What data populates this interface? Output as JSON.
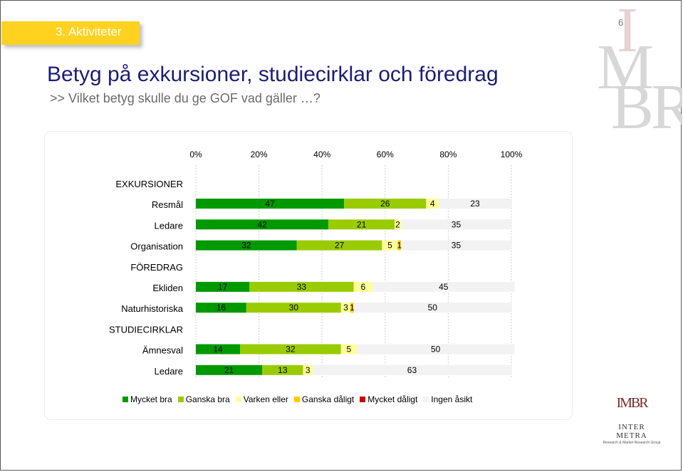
{
  "header": {
    "section_label": "3. Aktiviteter",
    "page_number": "6"
  },
  "watermark": {
    "letters": [
      "I",
      "M",
      "BR"
    ]
  },
  "title": "Betyg på exkursioner, studiecirklar och föredrag",
  "subtitle": ">> Vilket betyg skulle du ge GOF vad gäller …?",
  "logo": {
    "mark": "IMBR",
    "name": "INTER METRA",
    "tagline": "Research & Market Research Group"
  },
  "colors": {
    "mycket_bra": "#009900",
    "ganska_bra": "#99cc00",
    "varken_eller": "#ffff99",
    "ganska_daligt": "#ffcc00",
    "mycket_daligt": "#cc0000",
    "ingen_asikt": "#f2f2f2"
  },
  "chart_data": {
    "type": "bar",
    "orientation": "horizontal",
    "stacked": true,
    "percent_axis": true,
    "xlim": [
      0,
      100
    ],
    "x_ticks": [
      "0%",
      "20%",
      "40%",
      "60%",
      "80%",
      "100%"
    ],
    "grid": true,
    "legend_position": "bottom",
    "series": [
      {
        "name": "Mycket bra",
        "color": "#009900"
      },
      {
        "name": "Ganska bra",
        "color": "#99cc00"
      },
      {
        "name": "Varken eller",
        "color": "#ffff99"
      },
      {
        "name": "Ganska dåligt",
        "color": "#ffcc00"
      },
      {
        "name": "Mycket dåligt",
        "color": "#cc0000"
      },
      {
        "name": "Ingen åsikt",
        "color": "#f2f2f2"
      }
    ],
    "groups": [
      {
        "label": "EXKURSIONER",
        "rows": [
          {
            "label": "Resmål",
            "values": [
              47,
              26,
              4,
              0,
              0,
              23
            ],
            "value_labels": [
              "47",
              "26",
              "4",
              "",
              "",
              "23"
            ]
          },
          {
            "label": "Ledare",
            "values": [
              42,
              21,
              2,
              0,
              0,
              35
            ],
            "value_labels": [
              "42",
              "21",
              "2",
              "",
              "",
              "35"
            ]
          },
          {
            "label": "Organisation",
            "values": [
              32,
              27,
              5,
              1,
              0,
              35
            ],
            "value_labels": [
              "32",
              "27",
              "5",
              "1",
              "",
              "35"
            ]
          }
        ]
      },
      {
        "label": "FÖREDRAG",
        "rows": [
          {
            "label": "Ekliden",
            "values": [
              17,
              33,
              6,
              0,
              0,
              45
            ],
            "value_labels": [
              "17",
              "33",
              "6",
              "",
              "",
              "45"
            ]
          },
          {
            "label": "Naturhistoriska",
            "values": [
              16,
              30,
              3,
              1,
              0,
              50
            ],
            "value_labels": [
              "16",
              "30",
              "3",
              "1",
              "",
              "50"
            ]
          }
        ]
      },
      {
        "label": "STUDIECIRKLAR",
        "rows": [
          {
            "label": "Ämnesval",
            "values": [
              14,
              32,
              5,
              0,
              0,
              50
            ],
            "value_labels": [
              "14",
              "32",
              "5",
              "",
              "",
              "50"
            ]
          },
          {
            "label": "Ledare",
            "values": [
              21,
              13,
              3,
              0,
              0,
              63
            ],
            "value_labels": [
              "21",
              "13",
              "3",
              "",
              "",
              "63"
            ]
          }
        ]
      }
    ]
  }
}
